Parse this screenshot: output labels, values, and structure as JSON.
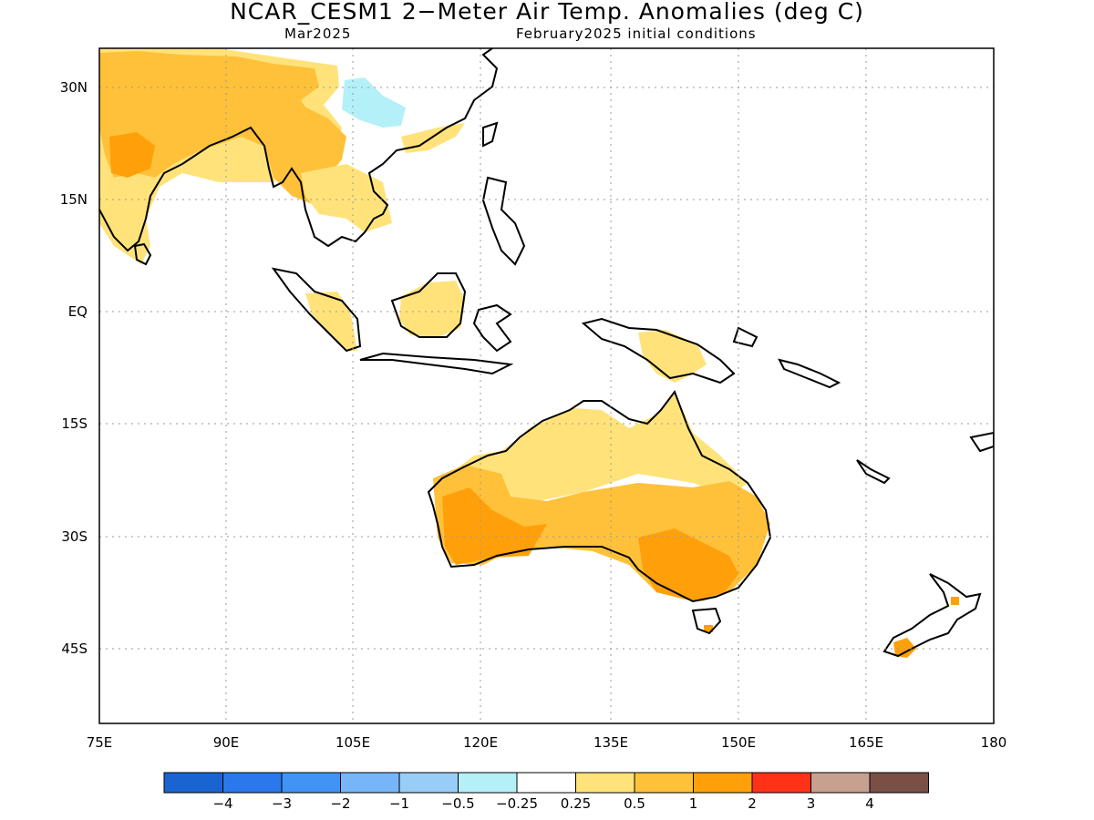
{
  "title": "NCAR_CESM1 2−Meter Air Temp. Anomalies (deg C)",
  "subtitle_left": "Mar2025",
  "subtitle_right": "February2025 initial conditions",
  "map": {
    "lon_range": [
      75,
      180
    ],
    "lat_range": [
      -55,
      35
    ],
    "lon_ticks": [
      {
        "value": 75,
        "label": "75E"
      },
      {
        "value": 90,
        "label": "90E"
      },
      {
        "value": 105,
        "label": "105E"
      },
      {
        "value": 120,
        "label": "120E"
      },
      {
        "value": 135,
        "label": "135E"
      },
      {
        "value": 150,
        "label": "150E"
      },
      {
        "value": 165,
        "label": "165E"
      },
      {
        "value": 180,
        "label": "180"
      }
    ],
    "lat_ticks": [
      {
        "value": 30,
        "label": "30N"
      },
      {
        "value": 15,
        "label": "15N"
      },
      {
        "value": 0,
        "label": "EQ"
      },
      {
        "value": -15,
        "label": "15S"
      },
      {
        "value": -30,
        "label": "30S"
      },
      {
        "value": -45,
        "label": "45S"
      }
    ],
    "grid": "dotted"
  },
  "colorbar": {
    "colors": [
      "#1a64d2",
      "#2a78ec",
      "#3f94f5",
      "#76b6f8",
      "#98cdf8",
      "#b4f0f8",
      "#ffffff",
      "#ffe37a",
      "#ffc13a",
      "#ffa00a",
      "#ff3218",
      "#c8a090",
      "#7a5044"
    ],
    "labels": [
      "−4",
      "−3",
      "−2",
      "−1",
      "−0.5",
      "−0.25",
      "0.25",
      "0.5",
      "1",
      "2",
      "3",
      "4"
    ]
  },
  "anomaly_colors": {
    "0.25-0.5": "#ffe37a",
    "0.5-1": "#ffc13a",
    "1-2": "#ffa00a",
    "-0.5--0.25": "#b4f0f8"
  }
}
